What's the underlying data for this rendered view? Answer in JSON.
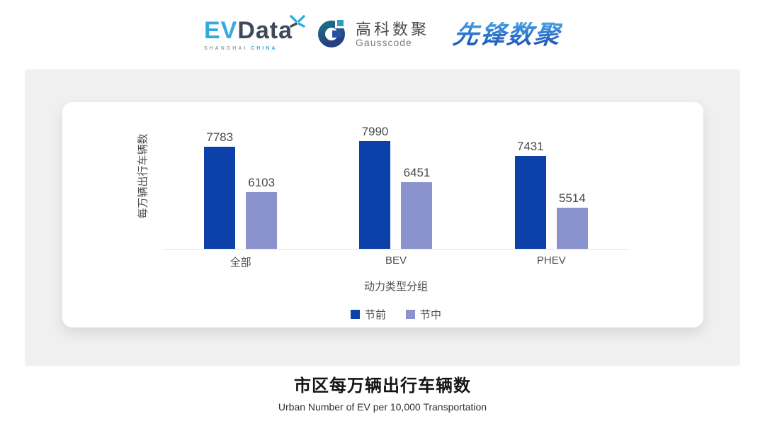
{
  "header": {
    "logos": {
      "evdata": {
        "ev": "EV",
        "data": "Data",
        "sub_left": "SHANGHAI",
        "sub_right": "CHINA"
      },
      "gausscode": {
        "cn": "高科数聚",
        "en": "Gausscode"
      },
      "xianfeng": {
        "text": "先锋数聚"
      }
    }
  },
  "chart_data": {
    "type": "bar",
    "title": "市区每万辆出行车辆数",
    "subtitle": "Urban Number of EV per 10,000 Transportation",
    "categories": [
      "全部",
      "BEV",
      "PHEV"
    ],
    "series": [
      {
        "name": "节前",
        "color": "#0b41a8",
        "values": [
          7783,
          7990,
          7431
        ]
      },
      {
        "name": "节中",
        "color": "#8a93ce",
        "values": [
          6103,
          6451,
          5514
        ]
      }
    ],
    "xlabel": "动力类型分组",
    "ylabel": "每万辆出行车辆数",
    "ylim_estimated": [
      4000,
      9450
    ],
    "grid": false,
    "legend_position": "bottom",
    "value_labels": true
  },
  "footer": {
    "title": "市区每万辆出行车辆数",
    "subtitle": "Urban Number of EV per 10,000 Transportation"
  },
  "colors": {
    "series_pre": "#0b41a8",
    "series_mid": "#8a93ce",
    "panel_bg": "#f0f0f1",
    "card_bg": "#ffffff",
    "axis_line": "#e3e3e3",
    "evdata_blue": "#33abdf",
    "evdata_slate": "#3e4a5a",
    "xianfeng_blue": "#2b72cc"
  }
}
